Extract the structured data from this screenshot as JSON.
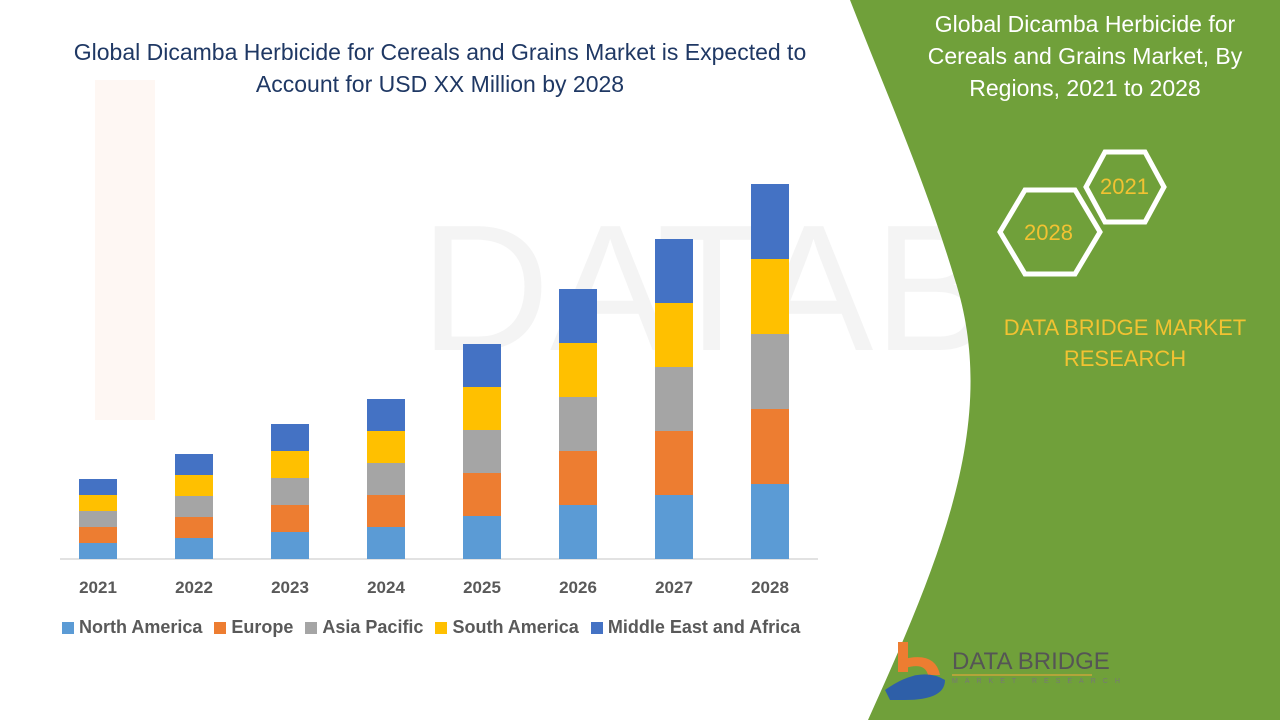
{
  "header": {
    "title": "Global Dicamba Herbicide for Cereals and Grains Market is Expected to Account for USD XX Million by 2028"
  },
  "side_panel": {
    "title": "Global Dicamba Herbicide for Cereals and Grains Market, By Regions, 2021 to 2028",
    "hex_labels": [
      "2021",
      "2028"
    ],
    "brand": "DATA BRIDGE MARKET RESEARCH",
    "logo_text": "DATA BRIDGE",
    "logo_sub": "MARKET RESEARCH",
    "panel_color": "#70a03a"
  },
  "chart_data": {
    "type": "bar",
    "stacked": true,
    "title": "",
    "xlabel": "",
    "ylabel": "",
    "categories": [
      "2021",
      "2022",
      "2023",
      "2024",
      "2025",
      "2026",
      "2027",
      "2028"
    ],
    "series": [
      {
        "name": "North America",
        "color": "#5b9bd5",
        "values": [
          16,
          21,
          27,
          32,
          43,
          54,
          64,
          75
        ]
      },
      {
        "name": "Europe",
        "color": "#ed7d31",
        "values": [
          16,
          21,
          27,
          32,
          43,
          54,
          64,
          75
        ]
      },
      {
        "name": "Asia Pacific",
        "color": "#a5a5a5",
        "values": [
          16,
          21,
          27,
          32,
          43,
          54,
          64,
          75
        ]
      },
      {
        "name": "South America",
        "color": "#ffc000",
        "values": [
          16,
          21,
          27,
          32,
          43,
          54,
          64,
          75
        ]
      },
      {
        "name": "Middle East and Africa",
        "color": "#4472c4",
        "values": [
          16,
          21,
          27,
          32,
          43,
          54,
          64,
          75
        ]
      }
    ],
    "grid": false,
    "legend_position": "bottom"
  }
}
